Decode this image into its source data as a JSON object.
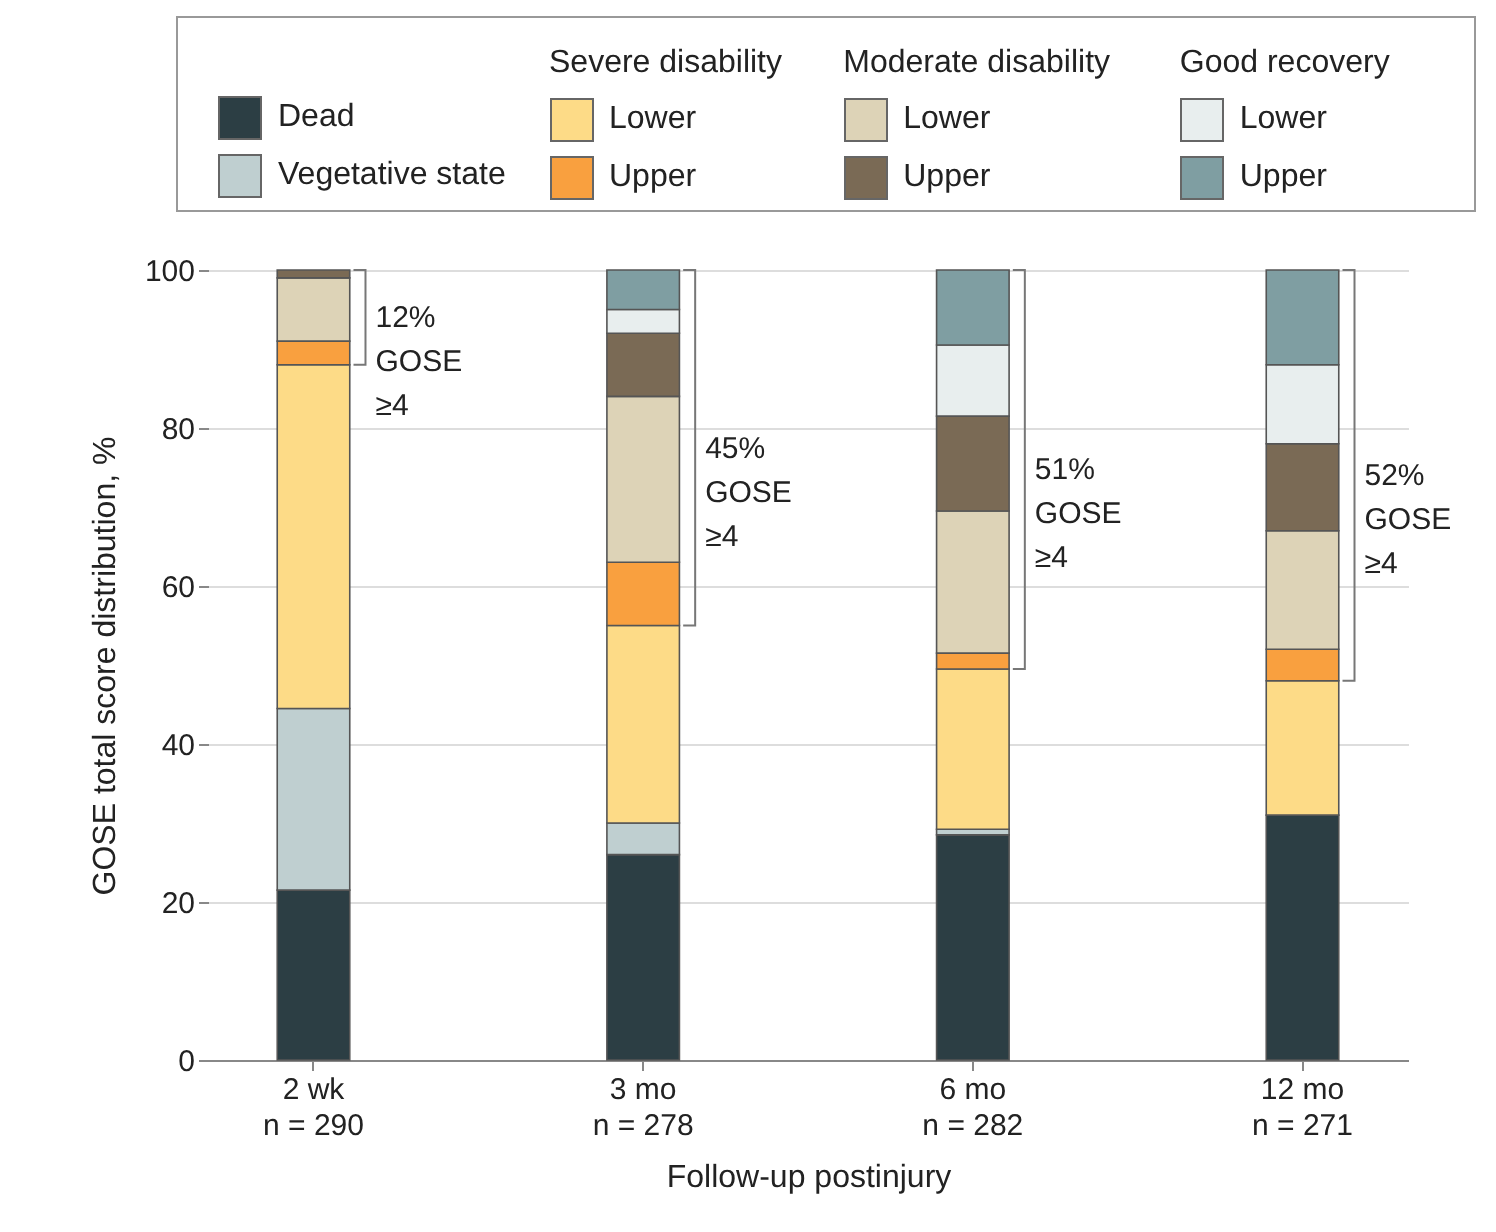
{
  "chart_data": {
    "type": "bar",
    "stacked": true,
    "categories": [
      "2 wk\nn = 290",
      "3 mo\nn = 278",
      "6 mo\nn = 282",
      "12 mo\nn = 271"
    ],
    "xlabel": "Follow-up postinjury",
    "ylabel": "GOSE total score distribution, %",
    "ylim": [
      0,
      100
    ],
    "yticks": [
      0,
      20,
      40,
      60,
      80,
      100
    ],
    "grid": "y",
    "legend": "top",
    "series": [
      {
        "name": "Dead",
        "color": "#2c3e44",
        "values": [
          21.5,
          26,
          28.5,
          31
        ]
      },
      {
        "name": "Vegetative state",
        "color": "#bfcfd0",
        "values": [
          23,
          4,
          0.7,
          0
        ]
      },
      {
        "name": "Lower",
        "color": "#fddb87",
        "values": [
          43.5,
          25,
          20.3,
          17
        ]
      },
      {
        "name": "Upper",
        "color": "#f9a03f",
        "values": [
          3,
          8,
          2,
          4
        ]
      },
      {
        "name": "Lower",
        "color": "#ddd3b7",
        "values": [
          8,
          21,
          18,
          15
        ]
      },
      {
        "name": "Upper",
        "color": "#7a6a55",
        "values": [
          1,
          8,
          12,
          11
        ]
      },
      {
        "name": "Lower",
        "color": "#e8eeee",
        "values": [
          0,
          3,
          9,
          10
        ]
      },
      {
        "name": "Upper",
        "color": "#7f9ea2",
        "values": [
          0,
          5,
          9.5,
          12
        ]
      }
    ],
    "annotations": [
      "Severe disability",
      "Moderate disability",
      "Good recovery",
      "12%\nGOSE\n≥4",
      "45%\nGOSE\n≥4",
      "51%\nGOSE\n≥4",
      "52%\nGOSE\n≥4"
    ]
  }
}
